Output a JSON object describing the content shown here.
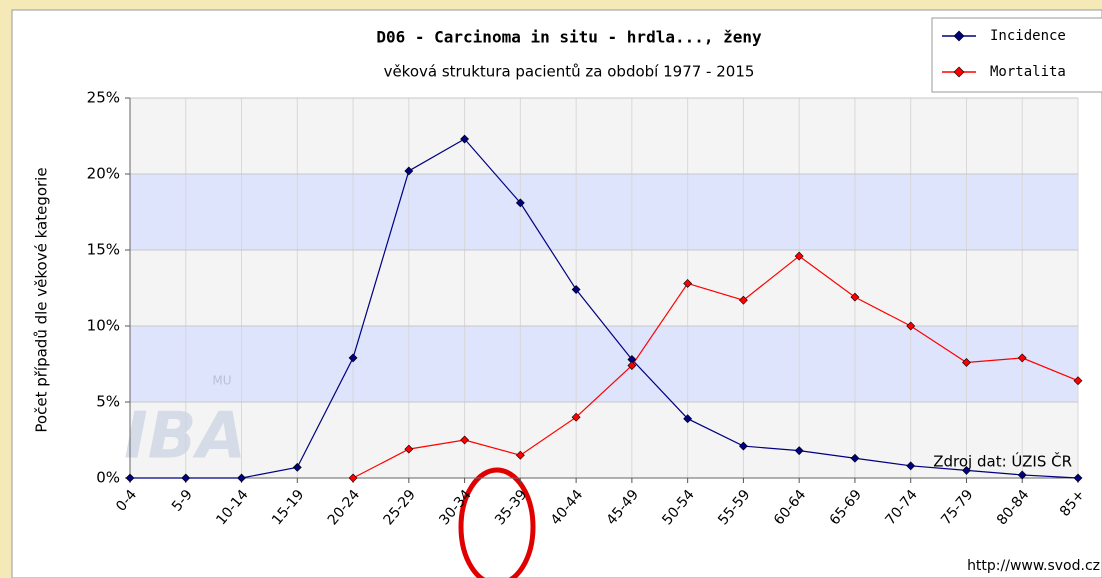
{
  "chart_data": {
    "type": "line",
    "title": "D06 - Carcinoma in situ - hrdla..., ženy",
    "subtitle": "věková struktura pacientů za období 1977 - 2015",
    "y_label": "Počet případů dle věkové kategorie",
    "categories": [
      "0-4",
      "5-9",
      "10-14",
      "15-19",
      "20-24",
      "25-29",
      "30-34",
      "35-39",
      "40-44",
      "45-49",
      "50-54",
      "55-59",
      "60-64",
      "65-69",
      "70-74",
      "75-79",
      "80-84",
      "85+"
    ],
    "series": [
      {
        "name": "Incidence",
        "color": "#000080",
        "values": [
          0,
          0,
          0,
          0.7,
          7.9,
          20.2,
          22.3,
          18.1,
          12.4,
          7.8,
          3.9,
          2.1,
          1.8,
          1.3,
          0.8,
          0.5,
          0.2,
          0
        ]
      },
      {
        "name": "Mortalita",
        "color": "#ff0000",
        "values": [
          null,
          null,
          null,
          null,
          0,
          1.9,
          2.5,
          1.5,
          4.0,
          7.4,
          12.8,
          11.7,
          14.6,
          11.9,
          10.0,
          7.6,
          7.9,
          6.4
        ]
      }
    ],
    "ylim": [
      0,
      25
    ],
    "yticks": [
      {
        "value": 0,
        "label": "0%"
      },
      {
        "value": 5,
        "label": "5%"
      },
      {
        "value": 10,
        "label": "10%"
      },
      {
        "value": 15,
        "label": "15%"
      },
      {
        "value": 20,
        "label": "20%"
      },
      {
        "value": 25,
        "label": "25%"
      }
    ],
    "grid": true,
    "legend": "top-right",
    "annotations": [
      "Zdroj dat: ÚZIS ČR",
      "http://www.svod.cz"
    ],
    "watermark": [
      "IBA",
      "MU"
    ]
  }
}
